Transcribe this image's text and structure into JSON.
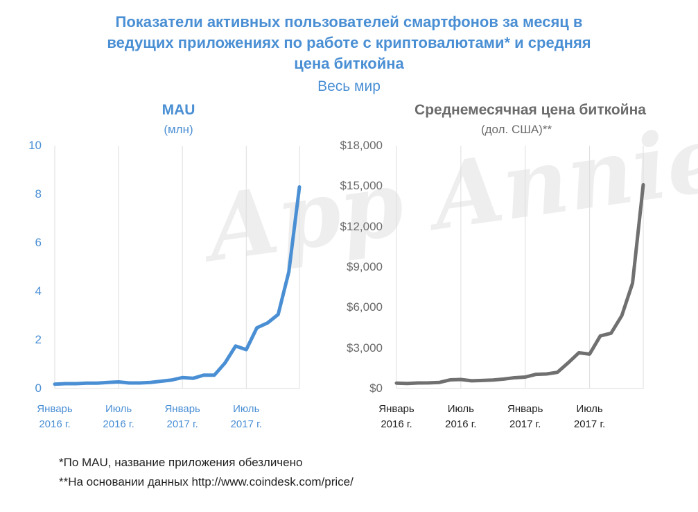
{
  "header": {
    "title_line1": "Показатели активных пользователей смартфонов за месяц в",
    "title_line2": "ведущих приложениях по работе с криптовалютами* и средняя",
    "title_line3": "цена биткойна",
    "subtitle": "Весь мир"
  },
  "watermark": "App Annie",
  "footnotes": {
    "note1": "*По MAU, название приложения обезличено",
    "note2": "**На основании данных http://www.coindesk.com/price/"
  },
  "colors": {
    "blue": "#4a8fd4",
    "grey": "#707070",
    "grid": "#dddddd"
  },
  "chart_data": [
    {
      "type": "line",
      "title": "MAU",
      "unit": "(млн)",
      "color": "#4a8fd4",
      "ylim": [
        0,
        10
      ],
      "yticks": [
        0,
        2,
        4,
        6,
        8,
        10
      ],
      "ytick_labels": [
        "0",
        "2",
        "4",
        "6",
        "8",
        "10"
      ],
      "grid": "vertical",
      "x_tick_labels": [
        {
          "line1": "Январь",
          "line2": "2016 г.",
          "index": 0
        },
        {
          "line1": "Июль",
          "line2": "2016 г.",
          "index": 6
        },
        {
          "line1": "Январь",
          "line2": "2017 г.",
          "index": 12
        },
        {
          "line1": "Июль",
          "line2": "2017 г.",
          "index": 18
        }
      ],
      "x_count": 24,
      "series": [
        {
          "values": [
            0.18,
            0.2,
            0.2,
            0.22,
            0.22,
            0.25,
            0.27,
            0.23,
            0.23,
            0.25,
            0.3,
            0.35,
            0.45,
            0.42,
            0.55,
            0.55,
            1.05,
            1.75,
            1.6,
            2.5,
            2.7,
            3.05,
            4.8,
            8.3
          ]
        }
      ]
    },
    {
      "type": "line",
      "title": "Среднемесячная цена биткойна",
      "unit": "(дол. США)**",
      "color": "#707070",
      "ylim": [
        0,
        18000
      ],
      "yticks": [
        0,
        3000,
        6000,
        9000,
        12000,
        15000,
        18000
      ],
      "ytick_labels": [
        "$0",
        "$3,000",
        "$6,000",
        "$9,000",
        "$12,000",
        "$15,000",
        "$18,000"
      ],
      "grid": "vertical",
      "x_tick_labels": [
        {
          "line1": "Январь",
          "line2": "2016 г.",
          "index": 0
        },
        {
          "line1": "Июль",
          "line2": "2016 г.",
          "index": 6
        },
        {
          "line1": "Январь",
          "line2": "2017 г.",
          "index": 12
        },
        {
          "line1": "Июль",
          "line2": "2017 г.",
          "index": 18
        }
      ],
      "x_count": 24,
      "series": [
        {
          "values": [
            400,
            370,
            410,
            420,
            450,
            640,
            670,
            570,
            600,
            630,
            700,
            800,
            850,
            1050,
            1080,
            1200,
            1900,
            2650,
            2550,
            3900,
            4100,
            5400,
            7800,
            15100
          ]
        }
      ]
    }
  ]
}
